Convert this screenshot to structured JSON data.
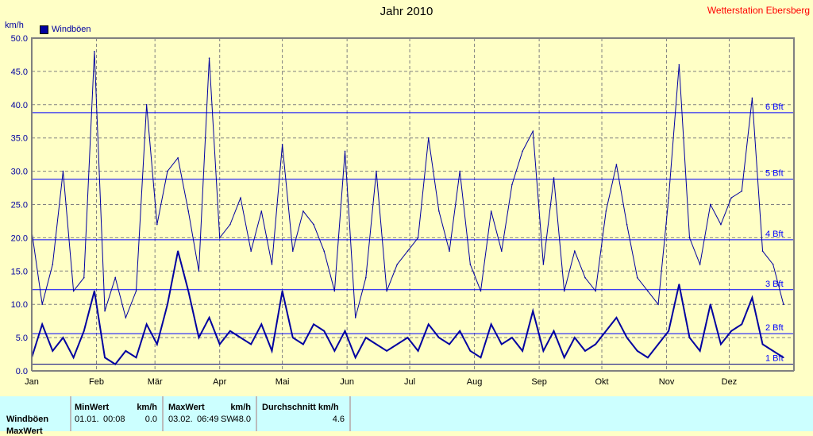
{
  "title": "Jahr 2010",
  "station": "Wetterstation Ebersberg",
  "chart_data": {
    "type": "line",
    "title": "Jahr 2010",
    "ylabel": "km/h",
    "ylim": [
      0,
      50
    ],
    "yticks": [
      "0.0",
      "5.0",
      "10.0",
      "15.0",
      "20.0",
      "25.0",
      "30.0",
      "35.0",
      "40.0",
      "45.0",
      "50.0"
    ],
    "months": [
      "Jan",
      "Feb",
      "Mär",
      "Apr",
      "Mai",
      "Jun",
      "Jul",
      "Aug",
      "Sep",
      "Okt",
      "Nov",
      "Dez"
    ],
    "grid": true,
    "legend": {
      "position": "top-left",
      "entries": [
        "Windböen"
      ]
    },
    "colors": {
      "series": "#0000a0",
      "beaufort": "#0000ff",
      "grid": "#808080"
    },
    "beaufort": [
      {
        "label": "1 Bft",
        "value": 1.0
      },
      {
        "label": "2 Bft",
        "value": 5.6
      },
      {
        "label": "3 Bft",
        "value": 12.2
      },
      {
        "label": "4 Bft",
        "value": 19.7
      },
      {
        "label": "5 Bft",
        "value": 28.8
      },
      {
        "label": "6 Bft",
        "value": 38.8
      }
    ],
    "x_step_days": 5,
    "series": [
      {
        "name": "Windböen",
        "values": [
          21,
          10,
          16,
          30,
          12,
          14,
          48,
          9,
          14,
          8,
          12,
          40,
          22,
          30,
          32,
          24,
          15,
          47,
          20,
          22,
          26,
          18,
          24,
          16,
          34,
          18,
          24,
          22,
          18,
          12,
          33,
          8,
          14,
          30,
          12,
          16,
          18,
          20,
          35,
          24,
          18,
          30,
          16,
          12,
          24,
          18,
          28,
          33,
          36,
          16,
          29,
          12,
          18,
          14,
          12,
          24,
          31,
          22,
          14,
          12,
          10,
          26,
          46,
          20,
          16,
          25,
          22,
          26,
          27,
          41,
          18,
          16,
          10
        ]
      },
      {
        "values": [
          2,
          7,
          3,
          5,
          2,
          6,
          12,
          2,
          1,
          3,
          2,
          7,
          4,
          10,
          18,
          12,
          5,
          8,
          4,
          6,
          5,
          4,
          7,
          3,
          12,
          5,
          4,
          7,
          6,
          3,
          6,
          2,
          5,
          4,
          3,
          4,
          5,
          3,
          7,
          5,
          4,
          6,
          3,
          2,
          7,
          4,
          5,
          3,
          9,
          3,
          6,
          2,
          5,
          3,
          4,
          6,
          8,
          5,
          3,
          2,
          4,
          6,
          13,
          5,
          3,
          10,
          4,
          6,
          7,
          11,
          4,
          3,
          2
        ]
      }
    ]
  },
  "table": {
    "row_label": "Windböen",
    "row2_label": "MaxWert",
    "min": {
      "header": "MinWert",
      "unit": "km/h",
      "date": "01.01.",
      "time": "00:08",
      "value": "0.0"
    },
    "max": {
      "header": "MaxWert",
      "unit": "km/h",
      "date": "03.02.",
      "time": "06:49",
      "dir": "SW",
      "value": "48.0"
    },
    "avg": {
      "header": "Durchschnitt km/h",
      "value": "4.6"
    }
  }
}
